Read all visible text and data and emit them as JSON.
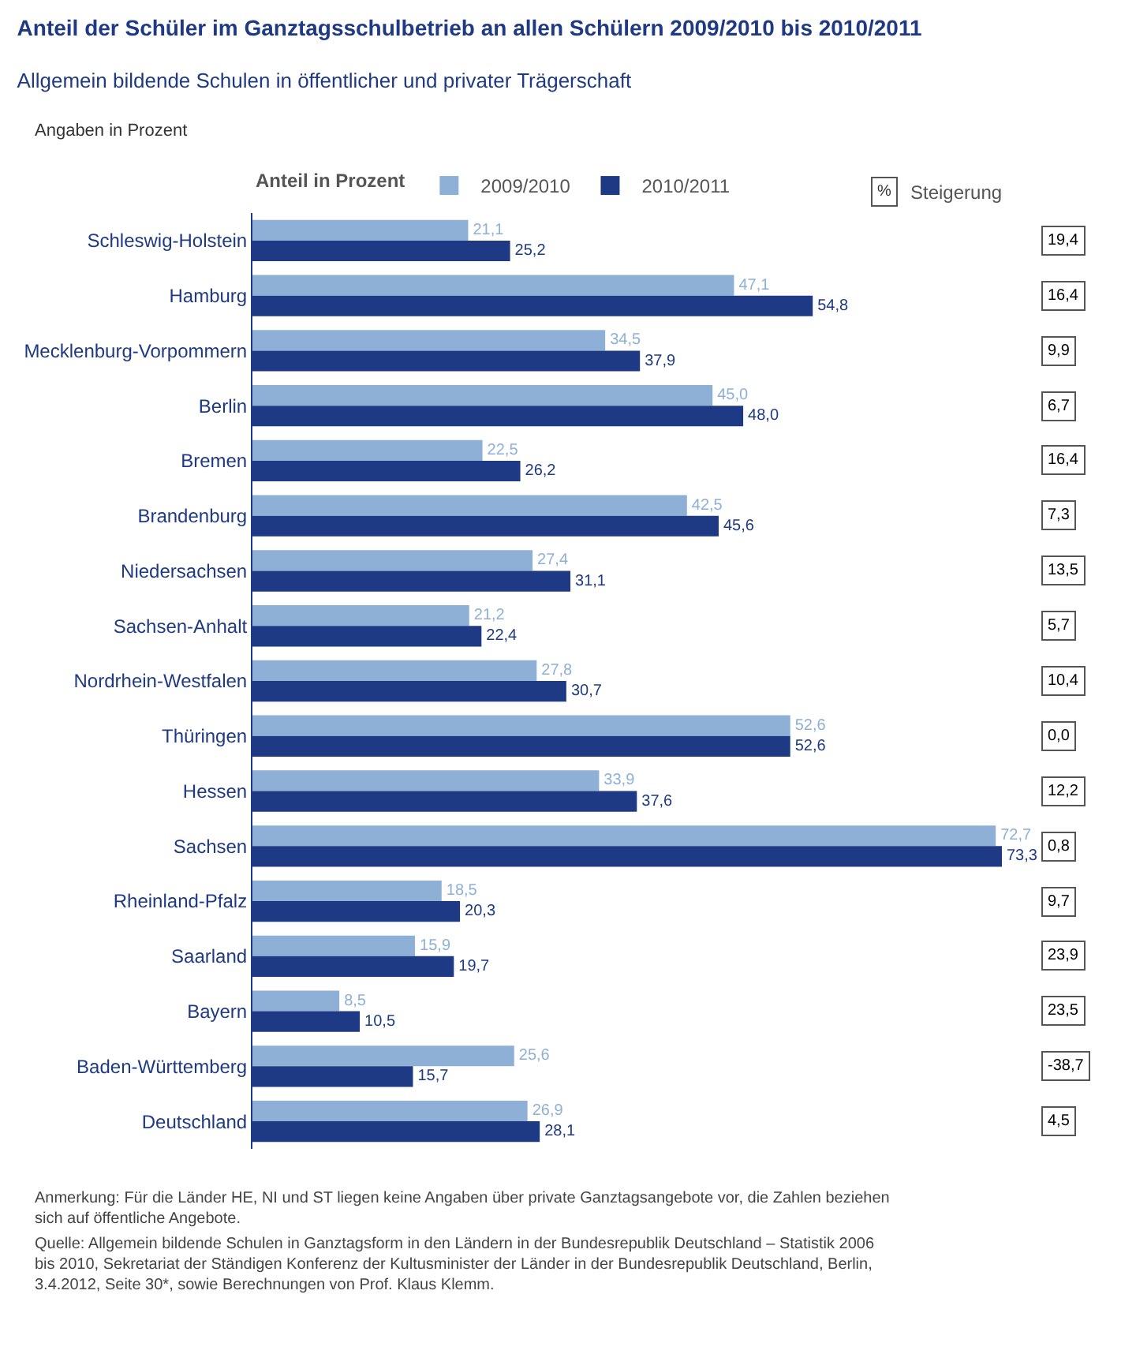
{
  "chart_data": {
    "type": "bar",
    "orientation": "horizontal",
    "title": "Anteil der Schüler im Ganztagsschulbetrieb an allen Schülern 2009/2010 bis 2010/2011",
    "subtitle": "Allgemein bildende Schulen in öffentlicher und privater Trägerschaft",
    "legend_title": "Anteil in Prozent",
    "legend": "top",
    "tick_labels": "y",
    "grid": false,
    "categories": [
      "Schleswig-Holstein",
      "Hamburg",
      "Mecklenburg-Vorpommern",
      "Berlin",
      "Bremen",
      "Brandenburg",
      "Niedersachsen",
      "Sachsen-Anhalt",
      "Nordrhein-Westfalen",
      "Thüringen",
      "Hessen",
      "Sachsen",
      "Rheinland-Pfalz",
      "Saarland",
      "Bayern",
      "Baden-Württemberg",
      "Deutschland"
    ],
    "series": [
      {
        "name": "2009/2010",
        "color": "#8fb0d6",
        "values": [
          21.1,
          47.1,
          34.5,
          45.0,
          22.5,
          42.5,
          27.4,
          21.2,
          27.8,
          52.6,
          33.9,
          72.7,
          18.5,
          15.9,
          8.5,
          25.6,
          26.9
        ],
        "value_labels": [
          "21,1",
          "47,1",
          "34,5",
          "45,0",
          "22,5",
          "42,5",
          "27,4",
          "21,2",
          "27,8",
          "52,6",
          "33,9",
          "72,7",
          "18,5",
          "15,9",
          "8,5",
          "25,6",
          "26,9"
        ]
      },
      {
        "name": "2010/2011",
        "color": "#1f3a84",
        "values": [
          25.2,
          54.8,
          37.9,
          48.0,
          26.2,
          45.6,
          31.1,
          22.4,
          30.7,
          52.6,
          37.6,
          73.3,
          20.3,
          19.7,
          10.5,
          15.7,
          28.1
        ],
        "value_labels": [
          "25,2",
          "54,8",
          "37,9",
          "48,0",
          "26,2",
          "45,6",
          "31,1",
          "22,4",
          "30,7",
          "52,6",
          "37,6",
          "73,3",
          "20,3",
          "19,7",
          "10,5",
          "15,7",
          "28,1"
        ]
      }
    ],
    "annotations": [
      "Angaben in Prozent",
      "%",
      "Steigerung",
      "19,4",
      "16,4",
      "9,9",
      "6,7",
      "16,4",
      "7,3",
      "13,5",
      "5,7",
      "10,4",
      "0,0",
      "12,2",
      "0,8",
      "9,7",
      "23,9",
      "23,5",
      "-38,7",
      "4,5",
      "Anmerkung: Für die Länder HE, NI und ST liegen keine Angaben über private Ganztagsangebote vor, die Zahlen beziehen sich auf öffentliche Angebote.",
      "Quelle: Allgemein bildende Schulen in Ganztagsform in den Ländern in der Bundesrepublik Deutschland – Statistik 2006 bis 2010, Sekretariat der Ständigen Konferenz der Kultusminister der Länder in der Bundesrepublik Deutschland, Berlin, 3.4.2012, Seite 30*, sowie Berechnungen von Prof. Klaus Klemm."
    ]
  }
}
